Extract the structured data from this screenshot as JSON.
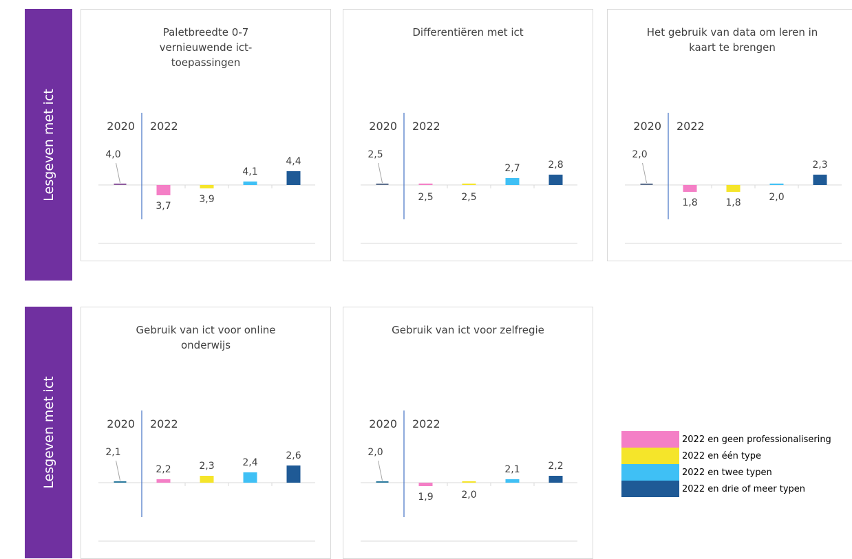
{
  "side_labels": [
    "Lesgeven met ict",
    "Lesgeven met ict"
  ],
  "legend": [
    {
      "name": "2022 en geen professionalisering",
      "color": "#f47fc6"
    },
    {
      "name": "2022 en één type",
      "color": "#f5e52a"
    },
    {
      "name": "2022 en twee typen",
      "color": "#3fc0f5"
    },
    {
      "name": "2022 en drie of meer typen",
      "color": "#1f5a96"
    }
  ],
  "chart_data": [
    {
      "type": "bar",
      "title": "Paletbreedte 0-7 vernieuwende ict-toepassingen",
      "annotations": [
        "2020",
        "2022"
      ],
      "values": [
        4.0,
        3.7,
        3.9,
        4.1,
        4.4
      ],
      "value_labels": [
        "4,0",
        "3,7",
        "3,9",
        "4,1",
        "4,4"
      ],
      "colors": [
        "#8e5a9e",
        "#f47fc6",
        "#f5e52a",
        "#3fc0f5",
        "#1f5a96"
      ]
    },
    {
      "type": "bar",
      "title": "Differentiëren met ict",
      "annotations": [
        "2020",
        "2022"
      ],
      "values": [
        2.5,
        2.5,
        2.5,
        2.7,
        2.8
      ],
      "value_labels": [
        "2,5",
        "2,5",
        "2,5",
        "2,7",
        "2,8"
      ],
      "colors": [
        "#5b6e8c",
        "#f47fc6",
        "#f5e52a",
        "#3fc0f5",
        "#1f5a96"
      ]
    },
    {
      "type": "bar",
      "title": "Het gebruik van data om leren in kaart te brengen",
      "annotations": [
        "2020",
        "2022"
      ],
      "values": [
        2.0,
        1.8,
        1.8,
        2.0,
        2.3
      ],
      "value_labels": [
        "2,0",
        "1,8",
        "1,8",
        "2,0",
        "2,3"
      ],
      "colors": [
        "#5b6e8c",
        "#f47fc6",
        "#f5e52a",
        "#3fc0f5",
        "#1f5a96"
      ]
    },
    {
      "type": "bar",
      "title": "Gebruik van ict voor online onderwijs",
      "annotations": [
        "2020",
        "2022"
      ],
      "values": [
        2.1,
        2.2,
        2.3,
        2.4,
        2.6
      ],
      "value_labels": [
        "2,1",
        "2,2",
        "2,3",
        "2,4",
        "2,6"
      ],
      "colors": [
        "#2b7a9e",
        "#f47fc6",
        "#f5e52a",
        "#3fc0f5",
        "#1f5a96"
      ]
    },
    {
      "type": "bar",
      "title": "Gebruik van ict voor zelfregie",
      "annotations": [
        "2020",
        "2022"
      ],
      "values": [
        2.0,
        1.9,
        2.0,
        2.1,
        2.2
      ],
      "value_labels": [
        "2,0",
        "1,9",
        "2,0",
        "2,1",
        "2,2"
      ],
      "colors": [
        "#2b7a9e",
        "#f47fc6",
        "#f5e52a",
        "#3fc0f5",
        "#1f5a96"
      ]
    }
  ]
}
